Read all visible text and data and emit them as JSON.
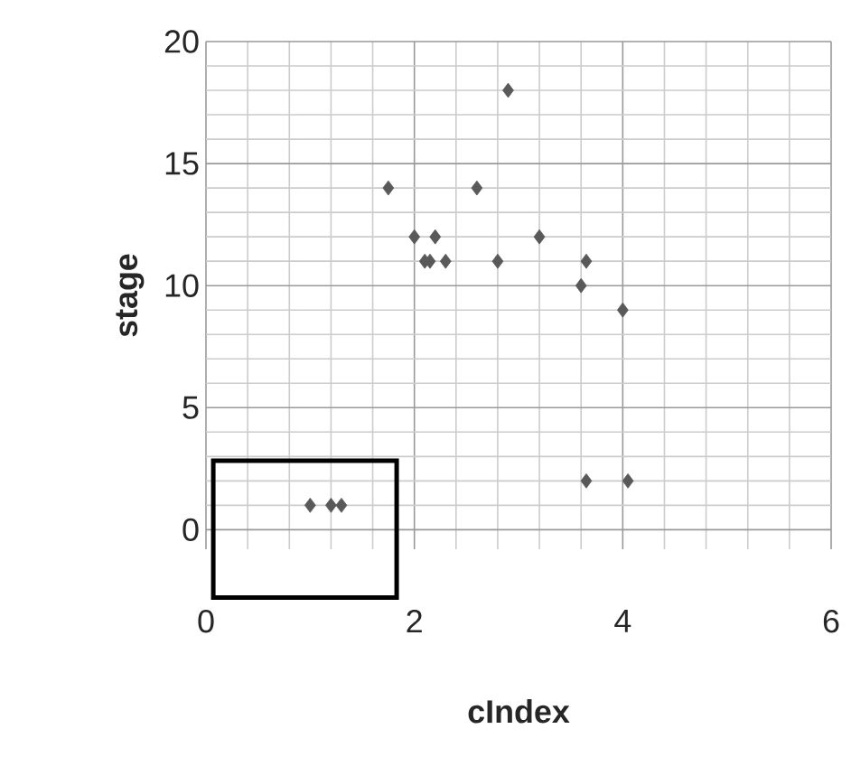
{
  "chart_data": {
    "type": "scatter",
    "xlabel": "cIndex",
    "ylabel": "stage",
    "x": [
      1.75,
      2.9,
      2.6,
      2.0,
      2.2,
      3.2,
      2.1,
      2.15,
      2.3,
      2.8,
      3.65,
      3.6,
      4.0,
      3.65,
      4.05,
      1.0,
      1.2,
      1.3
    ],
    "values": [
      14,
      18,
      14,
      12,
      12,
      12,
      11,
      11,
      11,
      11,
      11,
      10,
      9,
      2,
      2,
      1,
      1,
      1
    ],
    "color": "#595959",
    "marker": "diamond",
    "grid": true,
    "xlim": [
      0,
      6
    ],
    "ylim": [
      -0.8,
      20
    ],
    "xticks": [
      0,
      2,
      4,
      6
    ],
    "yticks": [
      0,
      5,
      10,
      15,
      20
    ]
  }
}
